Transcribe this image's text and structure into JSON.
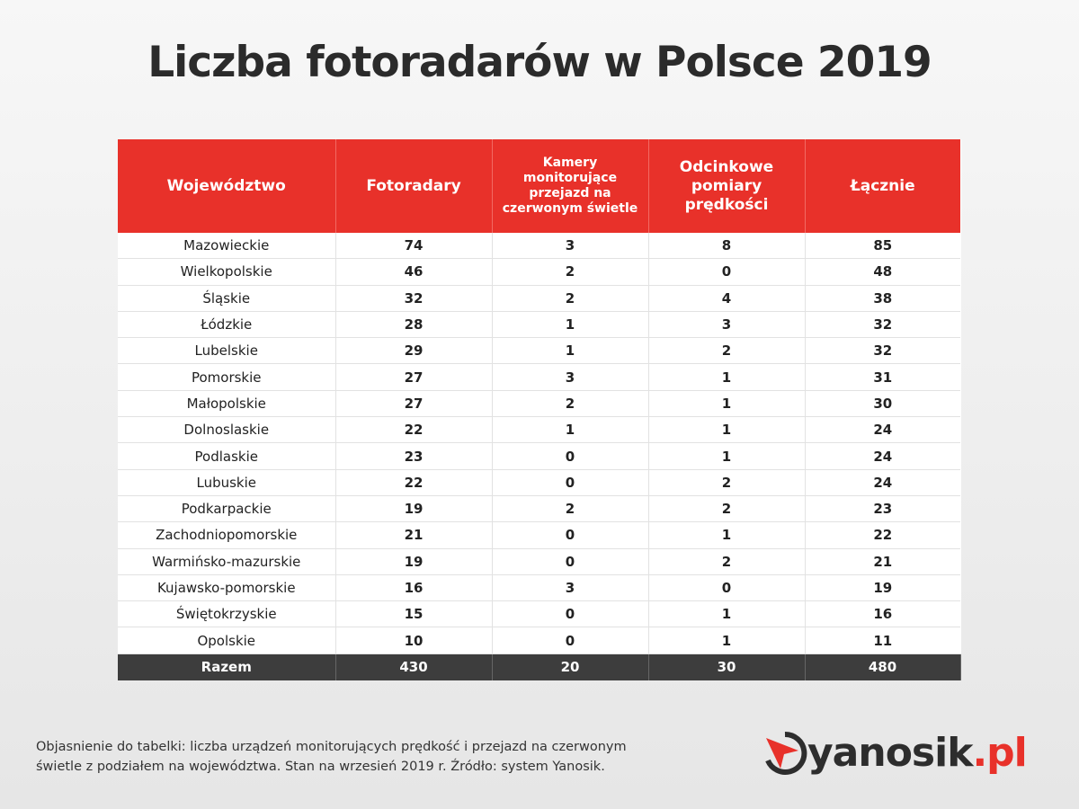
{
  "title": "Liczba fotoradarów w Polsce 2019",
  "table": {
    "headers": [
      "Województwo",
      "Fotoradary",
      "Kamery monitorujące przejazd na czerwonym świetle",
      "Odcinkowe pomiary prędkości",
      "Łącznie"
    ],
    "rows": [
      [
        "Mazowieckie",
        74,
        3,
        8,
        85
      ],
      [
        "Wielkopolskie",
        46,
        2,
        0,
        48
      ],
      [
        "Śląskie",
        32,
        2,
        4,
        38
      ],
      [
        "Łódzkie",
        28,
        1,
        3,
        32
      ],
      [
        "Lubelskie",
        29,
        1,
        2,
        32
      ],
      [
        "Pomorskie",
        27,
        3,
        1,
        31
      ],
      [
        "Małopolskie",
        27,
        2,
        1,
        30
      ],
      [
        "Dolnoslaskie",
        22,
        1,
        1,
        24
      ],
      [
        "Podlaskie",
        23,
        0,
        1,
        24
      ],
      [
        "Lubuskie",
        22,
        0,
        2,
        24
      ],
      [
        "Podkarpackie",
        19,
        2,
        2,
        23
      ],
      [
        "Zachodniopomorskie",
        21,
        0,
        1,
        22
      ],
      [
        "Warmińsko-mazurskie",
        19,
        0,
        2,
        21
      ],
      [
        "Kujawsko-pomorskie",
        16,
        3,
        0,
        19
      ],
      [
        "Świętokrzyskie",
        15,
        0,
        1,
        16
      ],
      [
        "Opolskie",
        10,
        0,
        1,
        11
      ]
    ],
    "total": [
      "Razem",
      430,
      20,
      30,
      480
    ]
  },
  "note": {
    "lines": [
      "Objasnienie do tabelki: liczba urządzeń monitorujących prędkość i przejazd na czerwonym",
      "świetle z podziałem na województwa. Stan na wrzesień 2019 r. Źródło: system Yanosik."
    ]
  },
  "logo": {
    "name": "yanosik",
    "suffix": ".pl"
  }
}
